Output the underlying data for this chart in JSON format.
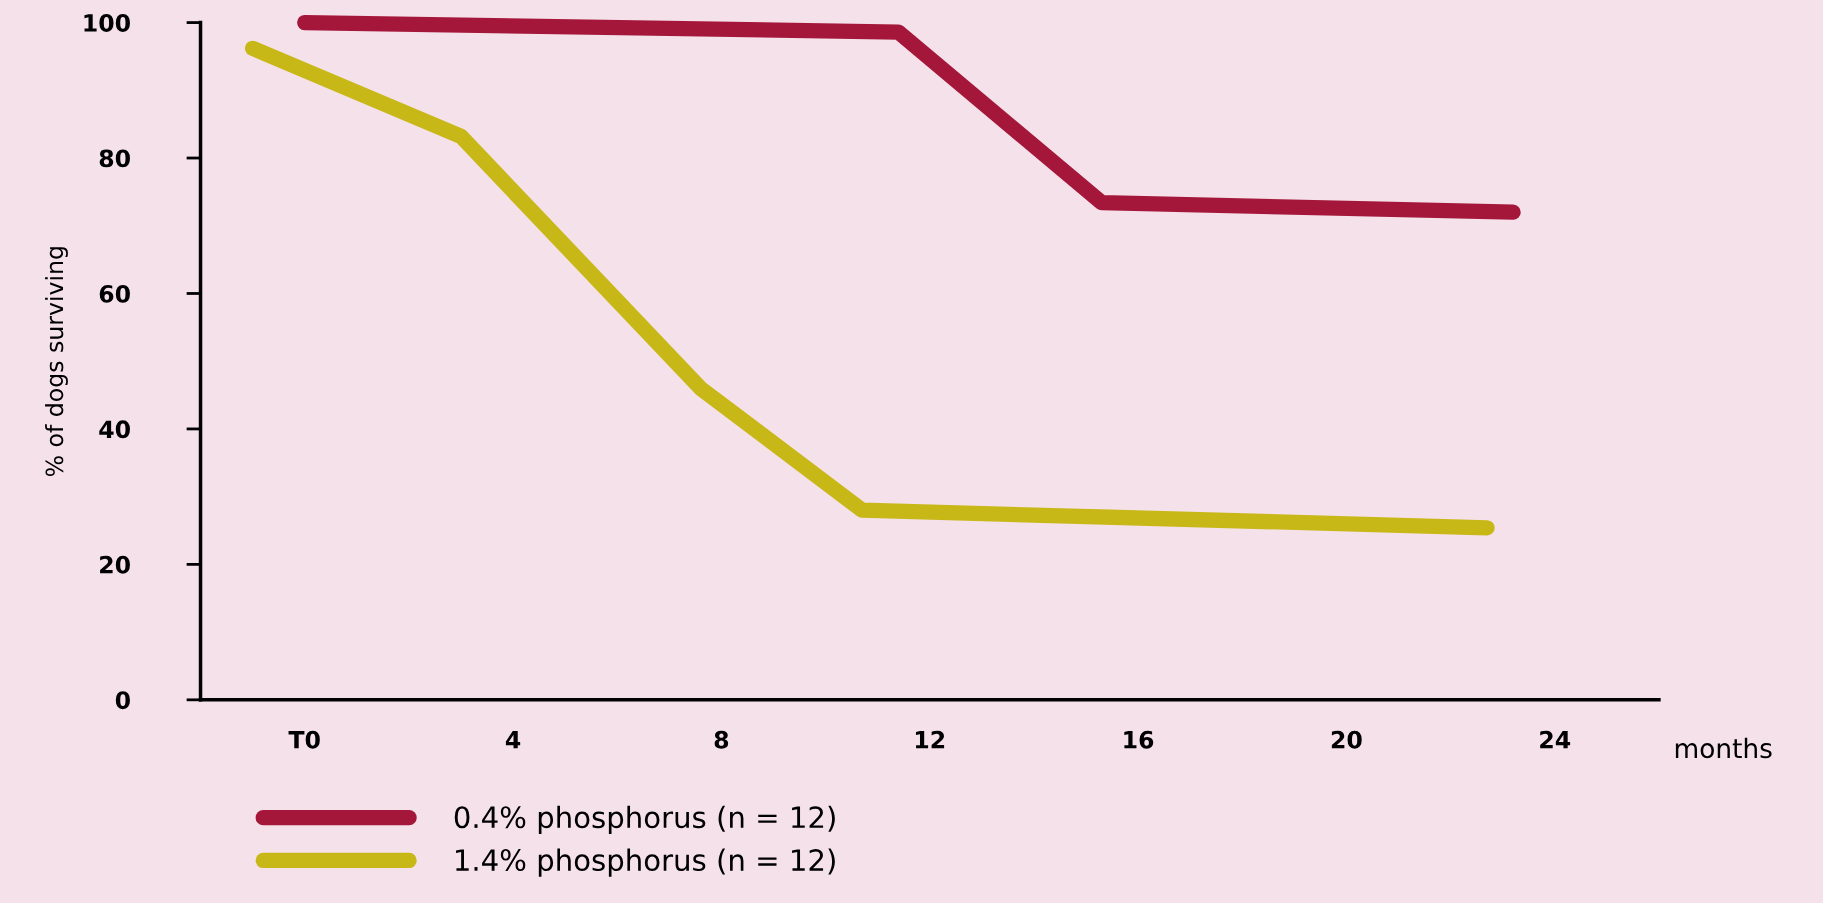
{
  "chart_data": {
    "type": "line",
    "xlabel": "months",
    "ylabel": "% of dogs surviving",
    "xlim": [
      -2,
      26
    ],
    "ylim": [
      0,
      100
    ],
    "xticks": [
      {
        "value": 0,
        "label": "T0"
      },
      4,
      8,
      12,
      16,
      20,
      24
    ],
    "yticks": [
      0,
      20,
      40,
      60,
      80,
      100
    ],
    "legend": "bottom left",
    "grid": false,
    "line_style": "solid",
    "series": [
      {
        "name": "0.4% phosphorus (n = 12)",
        "color": "#a5173a",
        "x": [
          0,
          11.4,
          15.3,
          23.2
        ],
        "values": [
          100,
          98.6,
          73.4,
          72
        ]
      },
      {
        "name": "1.4% phosphorus (n = 12)",
        "color": "#c8b817",
        "x": [
          -1,
          3,
          7.6,
          10.7,
          22.7
        ],
        "values": [
          96.2,
          83.2,
          46,
          28,
          25.4
        ]
      }
    ]
  }
}
